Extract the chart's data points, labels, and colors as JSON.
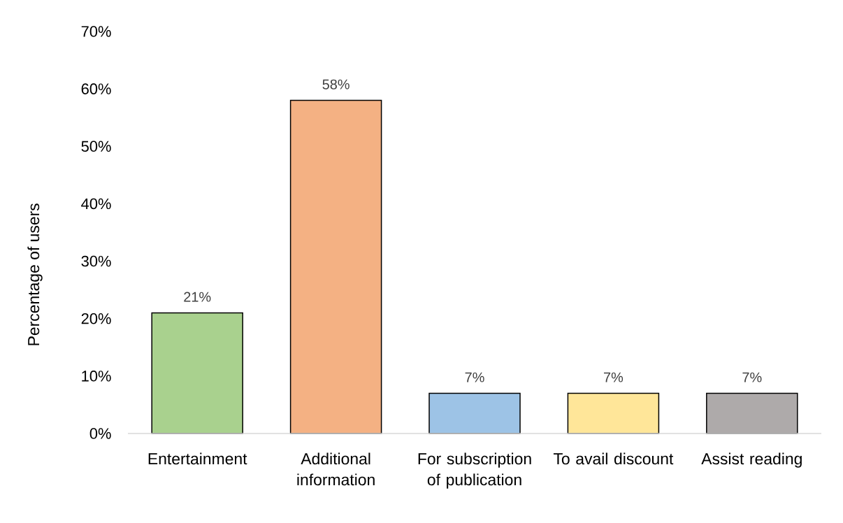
{
  "chart_data": {
    "type": "bar",
    "ylabel": "Percentage of users",
    "categories": [
      "Entertainment",
      "Additional information",
      "For subscription of publication",
      "To avail discount",
      "Assist reading"
    ],
    "values": [
      21,
      58,
      7,
      7,
      7
    ],
    "colors": [
      "#a9d18e",
      "#f4b183",
      "#9dc3e6",
      "#ffe699",
      "#aeaaaa"
    ],
    "value_labels": [
      "21%",
      "58%",
      "7%",
      "7%",
      "7%"
    ],
    "ylim": [
      0,
      70
    ],
    "yticks": [
      {
        "value": 0,
        "label": "0%"
      },
      {
        "value": 10,
        "label": "10%"
      },
      {
        "value": 20,
        "label": "20%"
      },
      {
        "value": 30,
        "label": "30%"
      },
      {
        "value": 40,
        "label": "40%"
      },
      {
        "value": 50,
        "label": "50%"
      },
      {
        "value": 60,
        "label": "60%"
      },
      {
        "value": 70,
        "label": "70%"
      }
    ],
    "grid": false
  }
}
